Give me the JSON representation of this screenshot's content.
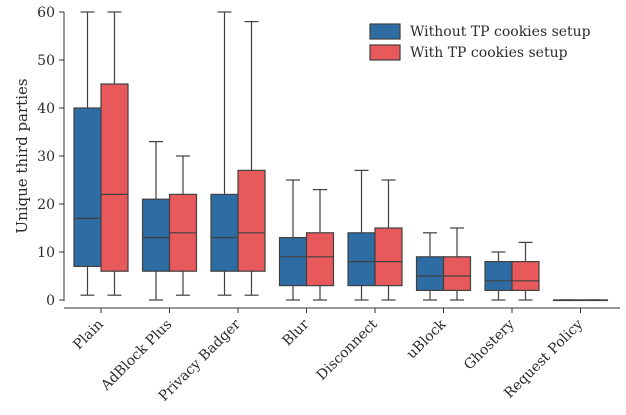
{
  "chart_data": {
    "type": "box",
    "ylabel": "Unique third parties",
    "xlabel": "",
    "ylim": [
      0,
      60
    ],
    "yticks": [
      0,
      10,
      20,
      30,
      40,
      50,
      60
    ],
    "grid": false,
    "legend_position": "top-right",
    "categories": [
      "Plain",
      "AdBlock Plus",
      "Privacy Badger",
      "Blur",
      "Disconnect",
      "uBlock",
      "Ghostery",
      "Request Policy"
    ],
    "series": [
      {
        "name": "Without TP cookies setup",
        "color": "#2e6da4",
        "boxes": [
          {
            "min": 1,
            "q1": 7,
            "median": 17,
            "q3": 40,
            "max": 60
          },
          {
            "min": 0,
            "q1": 6,
            "median": 13,
            "q3": 21,
            "max": 33
          },
          {
            "min": 1,
            "q1": 6,
            "median": 13,
            "q3": 22,
            "max": 60
          },
          {
            "min": 0,
            "q1": 3,
            "median": 9,
            "q3": 13,
            "max": 25
          },
          {
            "min": 0,
            "q1": 3,
            "median": 8,
            "q3": 14,
            "max": 27
          },
          {
            "min": 0,
            "q1": 2,
            "median": 5,
            "q3": 9,
            "max": 14
          },
          {
            "min": 0,
            "q1": 2,
            "median": 4,
            "q3": 8,
            "max": 10
          },
          {
            "min": 0,
            "q1": 0,
            "median": 0,
            "q3": 0,
            "max": 0
          }
        ]
      },
      {
        "name": "With TP cookies setup",
        "color": "#e8595c",
        "boxes": [
          {
            "min": 1,
            "q1": 6,
            "median": 22,
            "q3": 45,
            "max": 60
          },
          {
            "min": 1,
            "q1": 6,
            "median": 14,
            "q3": 22,
            "max": 30
          },
          {
            "min": 1,
            "q1": 6,
            "median": 14,
            "q3": 27,
            "max": 58
          },
          {
            "min": 0,
            "q1": 3,
            "median": 9,
            "q3": 14,
            "max": 23
          },
          {
            "min": 0,
            "q1": 3,
            "median": 8,
            "q3": 15,
            "max": 25
          },
          {
            "min": 0,
            "q1": 2,
            "median": 5,
            "q3": 9,
            "max": 15
          },
          {
            "min": 0,
            "q1": 2,
            "median": 4,
            "q3": 8,
            "max": 12
          },
          {
            "min": 0,
            "q1": 0,
            "median": 0,
            "q3": 0,
            "max": 0
          }
        ]
      }
    ]
  }
}
